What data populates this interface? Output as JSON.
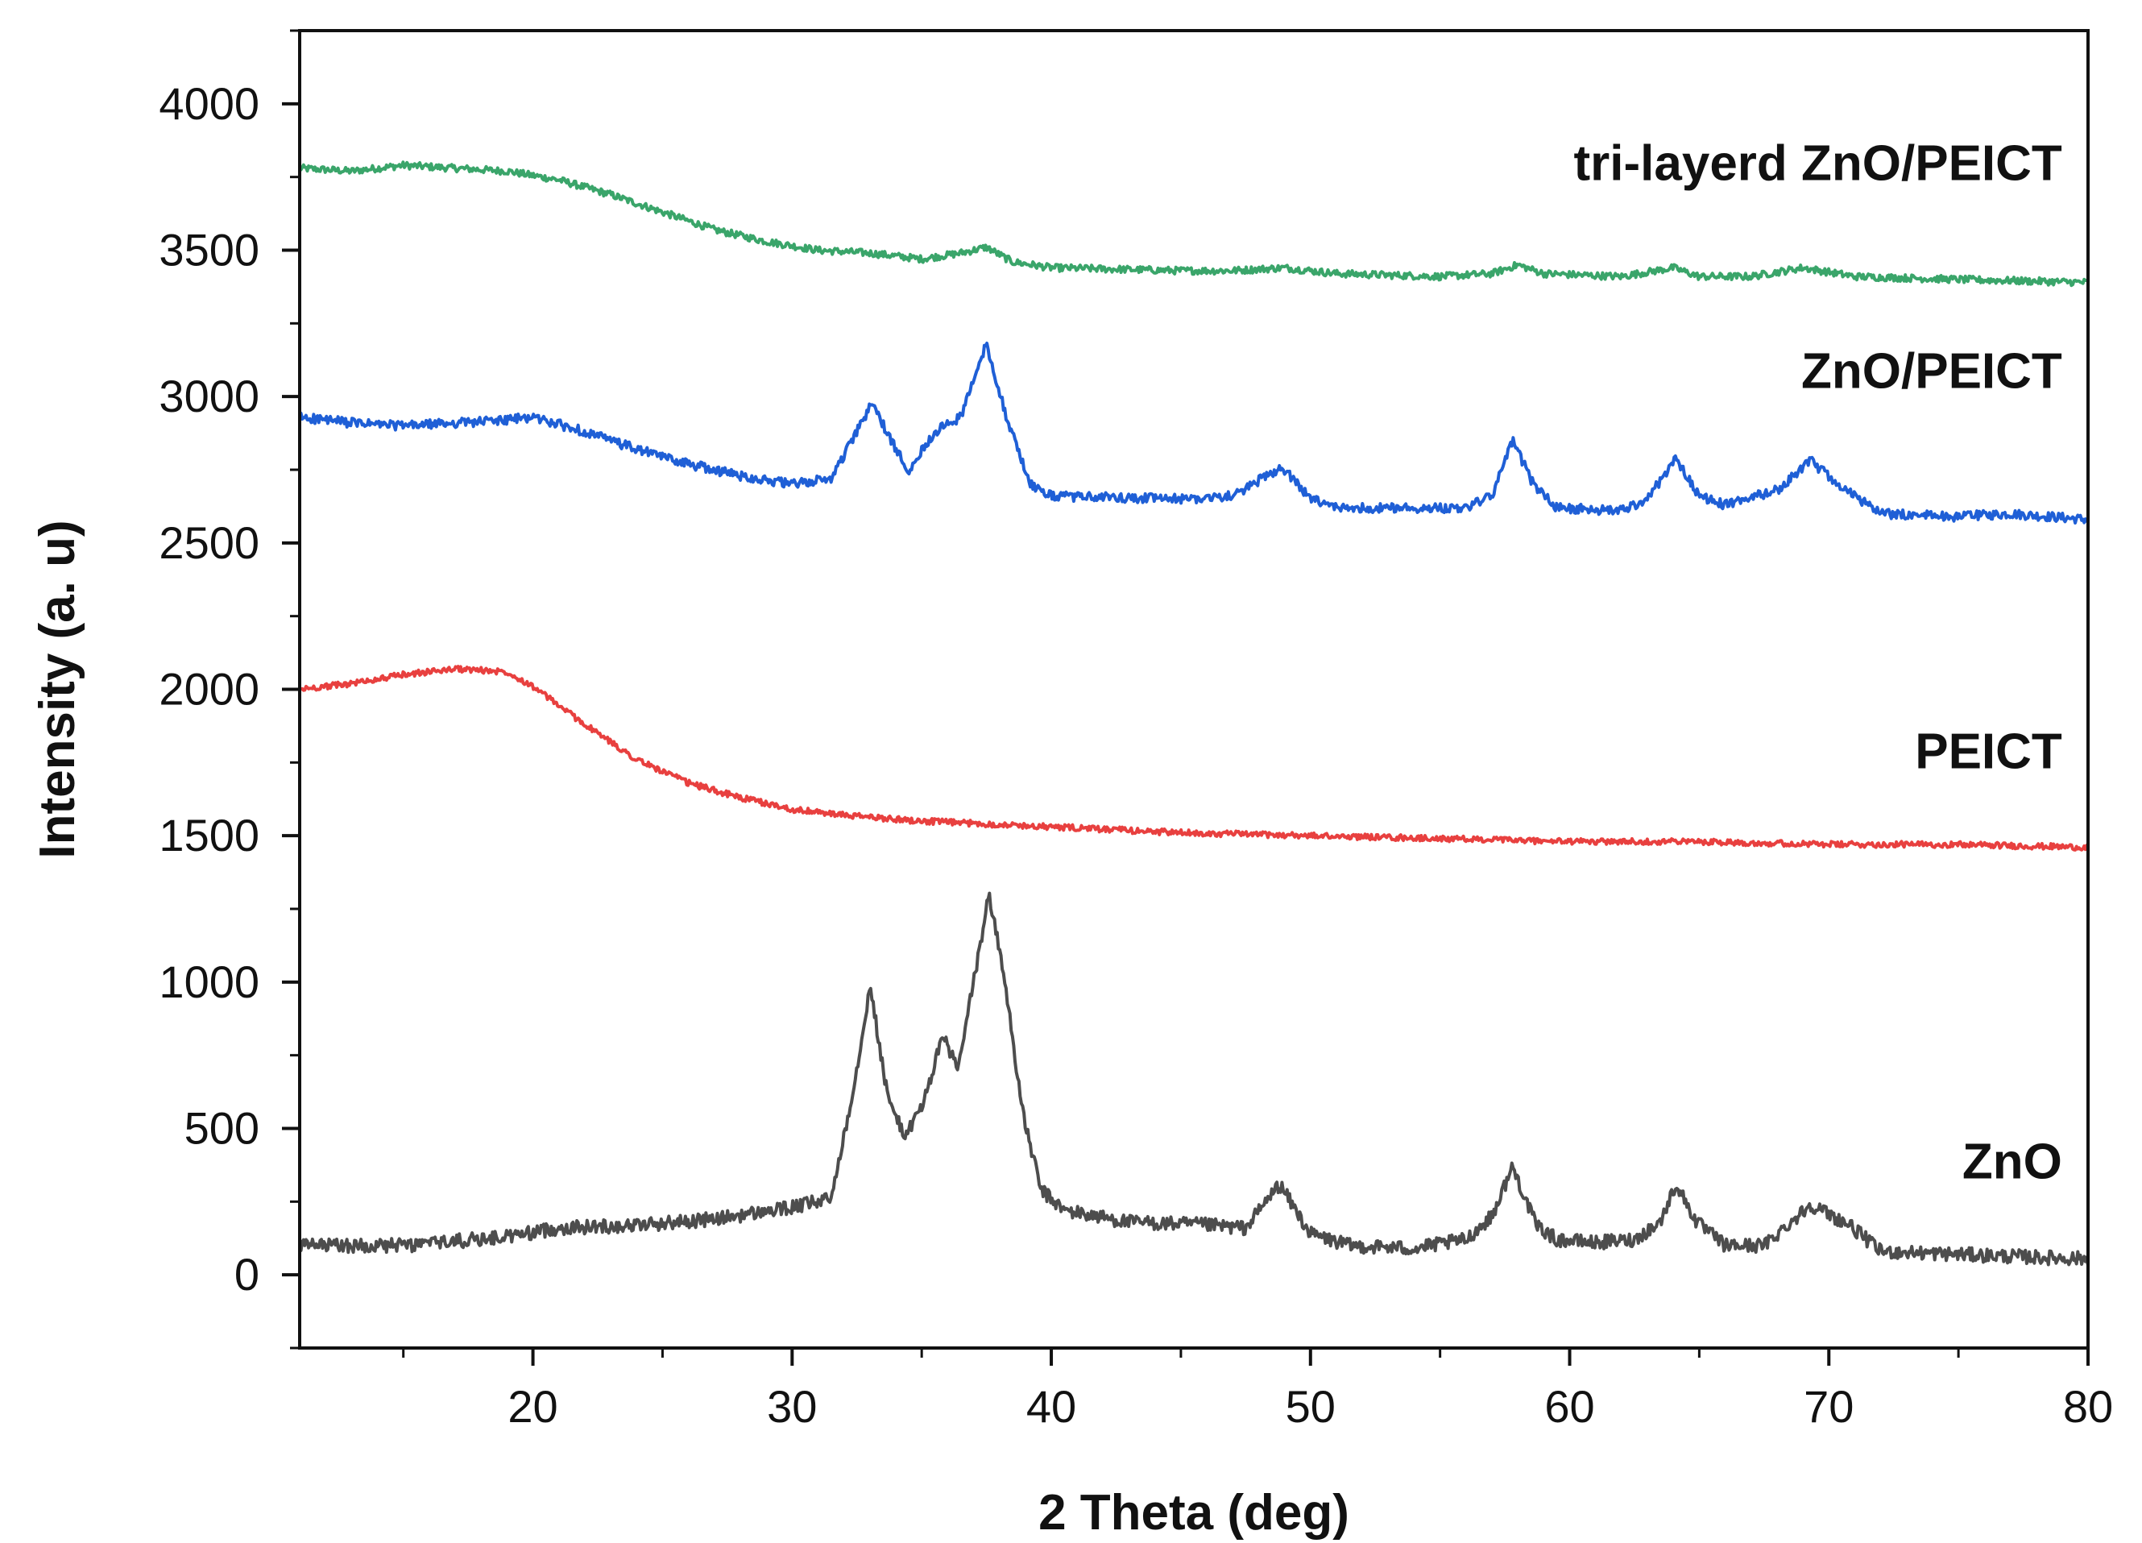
{
  "chart_data": {
    "type": "line",
    "title": "",
    "xlabel": "2 Theta (deg)",
    "ylabel": "Intensity (a. u)",
    "xlim": [
      11,
      80
    ],
    "ylim": [
      -250,
      4250
    ],
    "xticks": [
      20,
      30,
      40,
      50,
      60,
      70,
      80
    ],
    "yticks": [
      0,
      500,
      1000,
      1500,
      2000,
      2500,
      3000,
      3500,
      4000
    ],
    "xtick_labels": [
      "20",
      "30",
      "40",
      "50",
      "60",
      "70",
      "80"
    ],
    "ytick_labels": [
      "0",
      "500",
      "1000",
      "1500",
      "2000",
      "2500",
      "3000",
      "3500",
      "4000"
    ],
    "grid": false,
    "legend": "inline labels at right",
    "series": [
      {
        "name": "tri-layerd ZnO/PEICT",
        "color": "#3aa56a",
        "label_anchor": [
          79,
          3740
        ],
        "x": [
          11,
          13,
          15,
          17,
          19,
          21,
          23,
          25,
          27,
          29,
          31,
          33,
          35,
          36.5,
          37.5,
          38.5,
          40,
          45,
          47,
          49,
          51,
          55,
          57,
          58,
          59,
          62,
          64,
          65,
          67,
          69,
          71,
          75,
          80
        ],
        "y": [
          3780,
          3770,
          3790,
          3780,
          3770,
          3740,
          3690,
          3630,
          3570,
          3530,
          3500,
          3490,
          3470,
          3490,
          3510,
          3460,
          3440,
          3430,
          3430,
          3440,
          3420,
          3410,
          3420,
          3450,
          3420,
          3410,
          3440,
          3410,
          3410,
          3440,
          3410,
          3400,
          3390
        ]
      },
      {
        "name": "ZnO/PEICT",
        "color": "#1f5fd6",
        "label_anchor": [
          79,
          3030
        ],
        "x": [
          11,
          13,
          15,
          17,
          19,
          20,
          22,
          24,
          26,
          28,
          30,
          31.5,
          32.5,
          33.1,
          33.8,
          34.5,
          35.5,
          36.5,
          37.5,
          38.3,
          39.2,
          40,
          45,
          47,
          48.9,
          50,
          51,
          56,
          57,
          57.8,
          58.6,
          59.5,
          62,
          63,
          64.1,
          65,
          66,
          68,
          69.3,
          70.5,
          72,
          75,
          77,
          80
        ],
        "y": [
          2930,
          2910,
          2900,
          2910,
          2920,
          2930,
          2880,
          2820,
          2770,
          2730,
          2700,
          2720,
          2880,
          2980,
          2850,
          2750,
          2880,
          2930,
          3180,
          2920,
          2700,
          2660,
          2650,
          2660,
          2760,
          2650,
          2620,
          2620,
          2660,
          2850,
          2700,
          2620,
          2610,
          2650,
          2790,
          2660,
          2630,
          2680,
          2780,
          2690,
          2600,
          2590,
          2600,
          2580
        ]
      },
      {
        "name": "PEICT",
        "color": "#e8403f",
        "label_anchor": [
          79,
          1730
        ],
        "x": [
          11,
          13,
          15,
          17,
          19,
          20,
          22,
          24,
          26,
          28,
          30,
          32,
          35,
          40,
          45,
          50,
          55,
          60,
          65,
          70,
          75,
          80
        ],
        "y": [
          2000,
          2020,
          2050,
          2070,
          2060,
          2010,
          1880,
          1760,
          1680,
          1630,
          1590,
          1570,
          1550,
          1530,
          1510,
          1500,
          1490,
          1480,
          1480,
          1470,
          1470,
          1460
        ]
      },
      {
        "name": "ZnO",
        "color": "#4d4d4d",
        "label_anchor": [
          79,
          330
        ],
        "x": [
          11,
          15,
          19,
          21,
          24,
          27,
          30,
          31.5,
          32.4,
          33.0,
          33.7,
          34.4,
          35.2,
          35.8,
          36.4,
          37.0,
          37.6,
          38.2,
          38.9,
          39.6,
          40.5,
          43,
          46,
          47.5,
          48.8,
          50,
          51.5,
          54,
          56,
          57,
          57.8,
          58.7,
          59.5,
          61,
          62.5,
          63.5,
          64.1,
          64.9,
          66,
          67.5,
          69.3,
          70.8,
          72,
          75,
          78,
          80
        ],
        "y": [
          100,
          100,
          130,
          160,
          170,
          190,
          230,
          260,
          650,
          990,
          600,
          470,
          620,
          820,
          700,
          1000,
          1300,
          1010,
          550,
          290,
          220,
          180,
          170,
          160,
          310,
          140,
          100,
          90,
          120,
          200,
          370,
          170,
          120,
          110,
          120,
          180,
          310,
          180,
          100,
          100,
          240,
          170,
          80,
          70,
          60,
          55
        ]
      }
    ]
  }
}
